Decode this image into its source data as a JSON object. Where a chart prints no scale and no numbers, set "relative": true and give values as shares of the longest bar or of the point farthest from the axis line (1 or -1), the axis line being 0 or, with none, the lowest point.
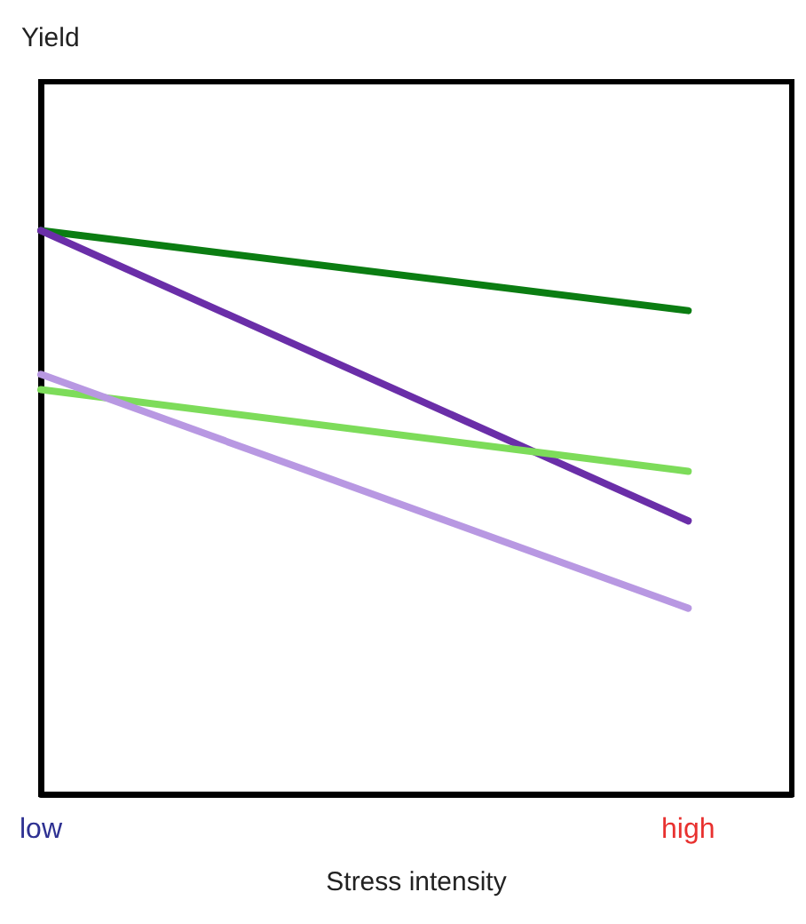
{
  "chart_data": {
    "type": "line",
    "relative": true,
    "xlabel": "Stress intensity",
    "annotations": [
      "Yield"
    ],
    "categories": [
      "low",
      "high"
    ],
    "line_style": "solid",
    "marker": "none",
    "series": [
      {
        "color": "#0b7d12",
        "values": [
          1,
          0.858
        ]
      },
      {
        "color": "#6a2ea8",
        "values": [
          1,
          0.485
        ]
      },
      {
        "color": "#7ddc5a",
        "values": [
          0.718,
          0.573
        ]
      },
      {
        "color": "#b898e2",
        "values": [
          0.745,
          0.33
        ]
      }
    ]
  }
}
